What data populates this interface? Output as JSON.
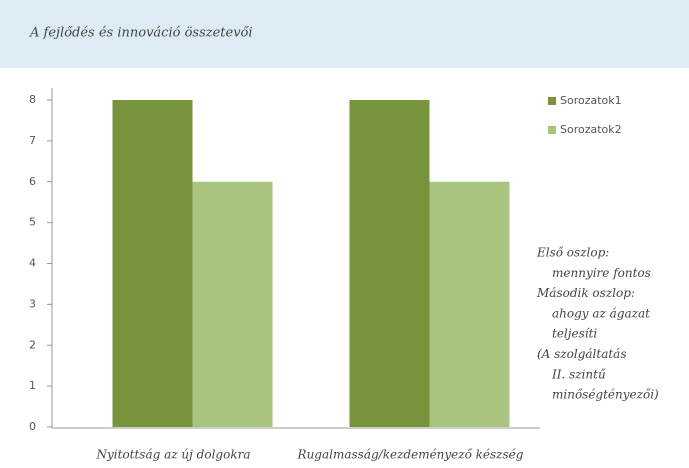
{
  "chart_data": {
    "type": "bar",
    "title": "A fejlődés és innováció összetevői",
    "categories": [
      "Nyitottság az új dolgokra",
      "Rugalmasság/kezdeményező készség"
    ],
    "series": [
      {
        "name": "Sorozatok1",
        "color": "#77933c",
        "values": [
          8,
          8
        ]
      },
      {
        "name": "Sorozatok2",
        "color": "#a9c47f",
        "values": [
          6,
          6
        ]
      }
    ],
    "ylim": [
      0,
      8
    ],
    "yticks": [
      0,
      1,
      2,
      3,
      4,
      5,
      6,
      7,
      8
    ],
    "legend": "right",
    "annotation": [
      "Első oszlop:",
      "mennyire fontos",
      "Második oszlop:",
      "ahogy az ágazat",
      "teljesíti",
      "(A szolgáltatás",
      "II. szintű",
      "minőségtényezői)"
    ]
  }
}
